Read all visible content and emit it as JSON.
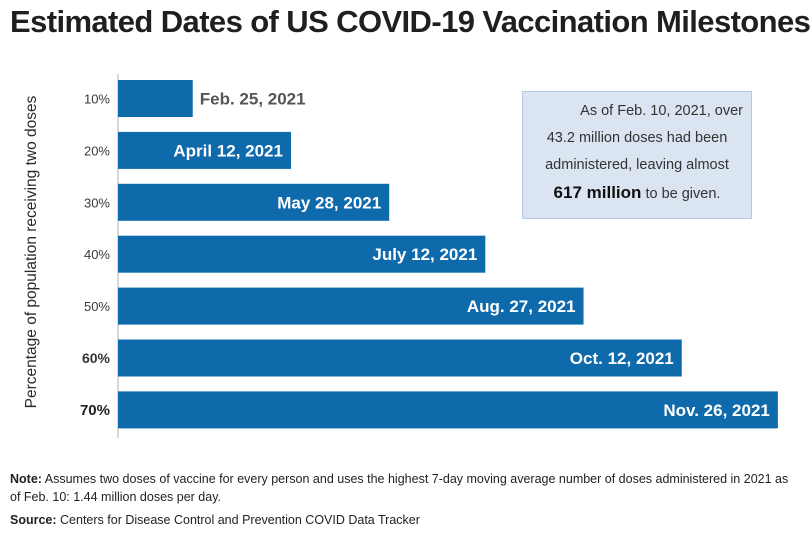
{
  "title": "Estimated Dates of US COVID-19 Vaccination Milestones",
  "chart_data": {
    "type": "bar",
    "orientation": "horizontal",
    "title": "Estimated Dates of US COVID-19 Vaccination Milestones",
    "ylabel": "Percentage of population receiving two doses",
    "xlabel": "",
    "categories": [
      "10%",
      "20%",
      "30%",
      "40%",
      "50%",
      "60%",
      "70%"
    ],
    "date_labels": [
      "Feb. 25, 2021",
      "April 12, 2021",
      "May 28, 2021",
      "July 12, 2021",
      "Aug. 27, 2021",
      "Oct. 12, 2021",
      "Nov. 26, 2021"
    ],
    "values": [
      15,
      61,
      107,
      152,
      198,
      244,
      289
    ],
    "value_unit": "days after Feb. 10, 2021",
    "xlim": [
      -20,
      290
    ],
    "bar_color": "#0f6aac"
  },
  "callout": {
    "line1": "As of Feb. 10, 2021, over",
    "line2": "43.2 million doses had been",
    "line3": "administered, leaving almost",
    "highlight": "617 million",
    "line4_rest": "to be given."
  },
  "note": {
    "label": "Note:",
    "text": "Assumes two doses of vaccine for every person and uses the highest 7-day moving average number of doses administered in 2021 as of Feb. 10: 1.44 million doses per day."
  },
  "source": {
    "label": "Source:",
    "text": "Centers for Disease Control and Prevention COVID Data Tracker"
  }
}
